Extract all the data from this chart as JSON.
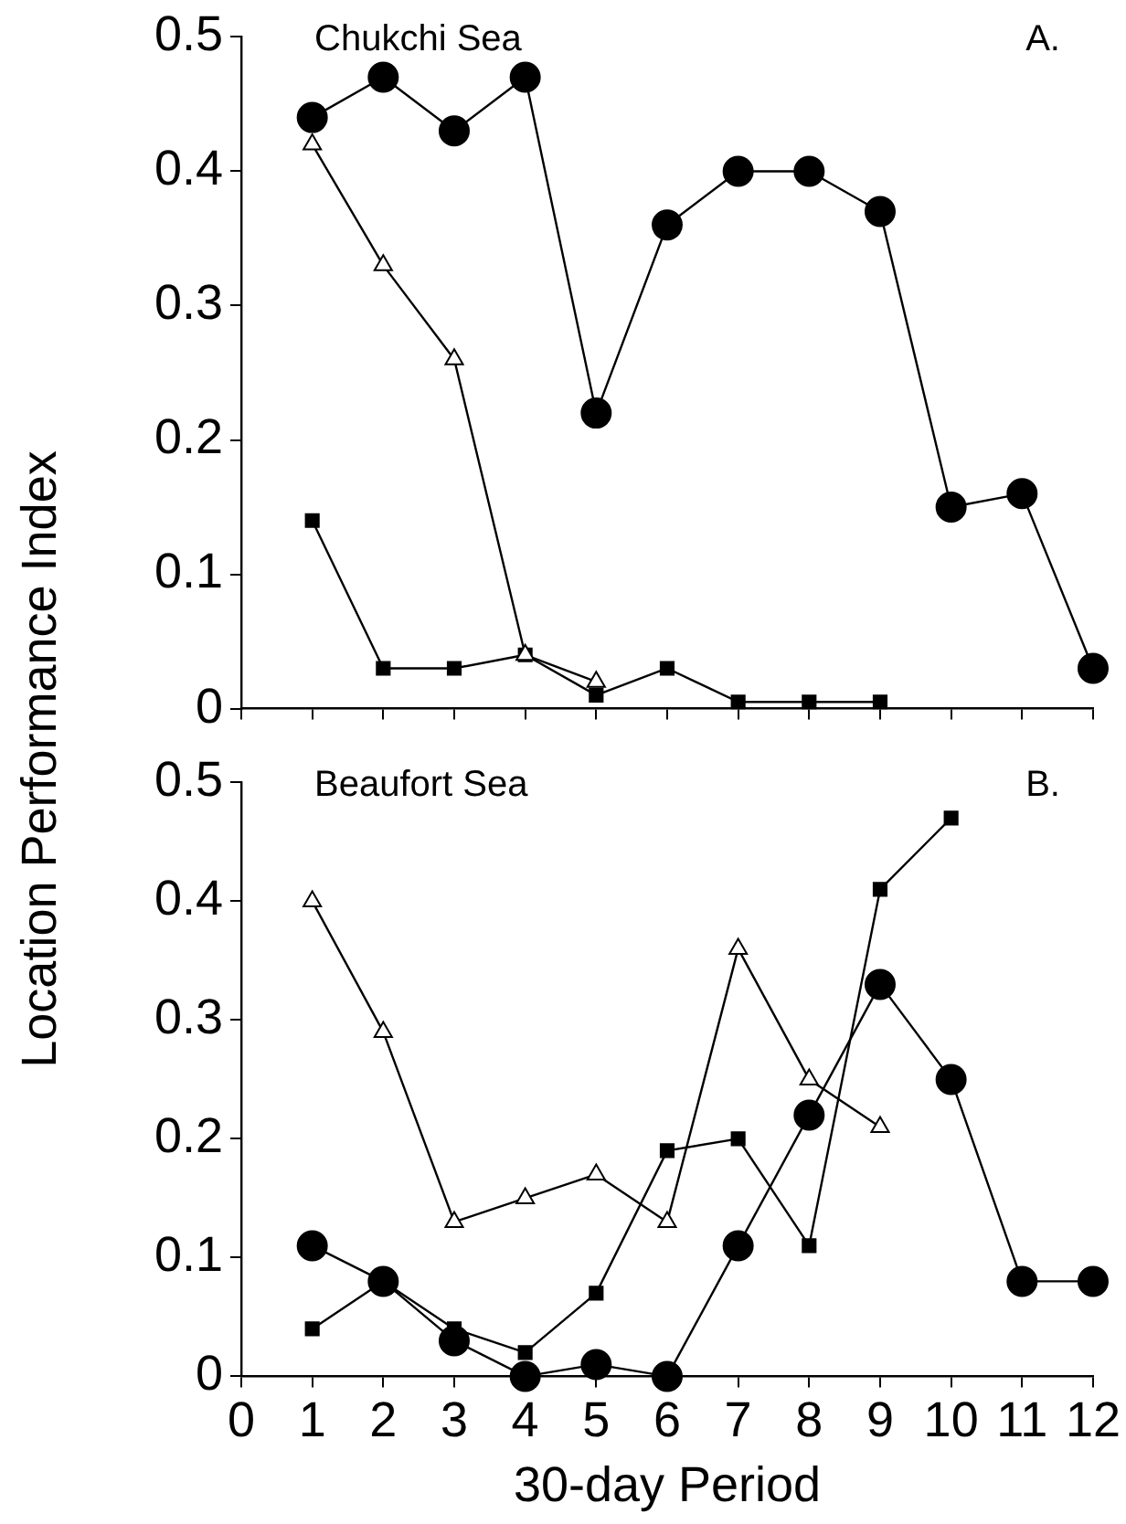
{
  "chart_data": [
    {
      "type": "line",
      "annotations": [
        "Chukchi Sea",
        "A."
      ],
      "xlim": [
        0,
        12
      ],
      "xticks": [
        0,
        1,
        2,
        3,
        4,
        5,
        6,
        7,
        8,
        9,
        10,
        11,
        12
      ],
      "ylim": [
        0,
        0.5
      ],
      "yticks": [
        0,
        0.1,
        0.2,
        0.3,
        0.4,
        0.5
      ],
      "grid": false,
      "legend": false,
      "tick_labels": "y",
      "line_style": "solid",
      "series": [
        {
          "color": "#000000",
          "marker": "circle",
          "x": [
            1,
            2,
            3,
            4,
            5,
            6,
            7,
            8,
            9,
            10,
            11,
            12
          ],
          "values": [
            0.44,
            0.47,
            0.43,
            0.47,
            0.22,
            0.36,
            0.4,
            0.4,
            0.37,
            0.15,
            0.16,
            0.03
          ]
        },
        {
          "color": "#000000",
          "marker": "triangle",
          "x": [
            1,
            2,
            3,
            4,
            5
          ],
          "values": [
            0.42,
            0.33,
            0.26,
            0.04,
            0.02
          ]
        },
        {
          "color": "#000000",
          "marker": "square",
          "x": [
            1,
            2,
            3,
            4,
            5,
            6,
            7,
            8,
            9
          ],
          "values": [
            0.14,
            0.03,
            0.03,
            0.04,
            0.01,
            0.03,
            0.005,
            0.005,
            0.005
          ]
        }
      ]
    },
    {
      "type": "line",
      "annotations": [
        "Beaufort Sea",
        "B."
      ],
      "xlabel": "30-day Period",
      "ylabel": "Location Performance Index",
      "xlim": [
        0,
        12
      ],
      "xticks": [
        0,
        1,
        2,
        3,
        4,
        5,
        6,
        7,
        8,
        9,
        10,
        11,
        12
      ],
      "ylim": [
        0,
        0.5
      ],
      "yticks": [
        0,
        0.1,
        0.2,
        0.3,
        0.4,
        0.5
      ],
      "grid": false,
      "legend": false,
      "line_style": "solid",
      "series": [
        {
          "color": "#000000",
          "marker": "triangle",
          "x": [
            1,
            2,
            3,
            4,
            5,
            6,
            7,
            8,
            9
          ],
          "values": [
            0.4,
            0.29,
            0.13,
            0.15,
            0.17,
            0.13,
            0.36,
            0.25,
            0.21
          ]
        },
        {
          "color": "#000000",
          "marker": "square",
          "x": [
            1,
            2,
            3,
            4,
            5,
            6,
            7,
            8,
            9,
            10
          ],
          "values": [
            0.04,
            0.08,
            0.04,
            0.02,
            0.07,
            0.19,
            0.2,
            0.11,
            0.41,
            0.47
          ]
        },
        {
          "color": "#000000",
          "marker": "circle",
          "x": [
            1,
            2,
            3,
            4,
            5,
            6,
            7,
            8,
            9,
            10,
            11,
            12
          ],
          "values": [
            0.11,
            0.08,
            0.03,
            0.0,
            0.01,
            0.0,
            0.11,
            0.22,
            0.33,
            0.25,
            0.08,
            0.08
          ]
        }
      ]
    }
  ]
}
